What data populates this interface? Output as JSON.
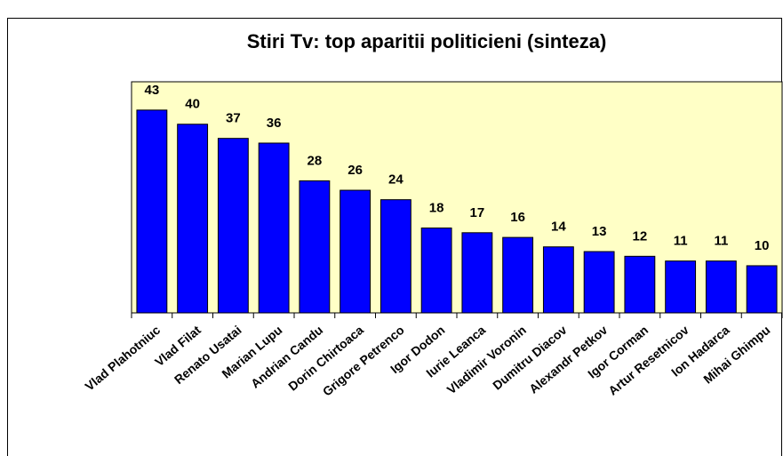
{
  "chart_data": {
    "type": "bar",
    "title": "Stiri Tv: top aparitii politicieni (sinteza)",
    "categories": [
      "Vlad Plahotniuc",
      "Vlad Filat",
      "Renato Usatai",
      "Marian Lupu",
      "Andrian Candu",
      "Dorin Chirtoaca",
      "Grigore Petrenco",
      "Igor Dodon",
      "Iurie Leanca",
      "Vladimir Voronin",
      "Dumitru Diacov",
      "Alexandr Petkov",
      "Igor Corman",
      "Artur Resetnicov",
      "Ion Hadarca",
      "Mihai Ghimpu"
    ],
    "values": [
      43,
      40,
      37,
      36,
      28,
      26,
      24,
      18,
      17,
      16,
      14,
      13,
      12,
      11,
      11,
      10
    ],
    "color": "#0000ff",
    "ylim": [
      0,
      49
    ],
    "background": "#ffffc6"
  }
}
